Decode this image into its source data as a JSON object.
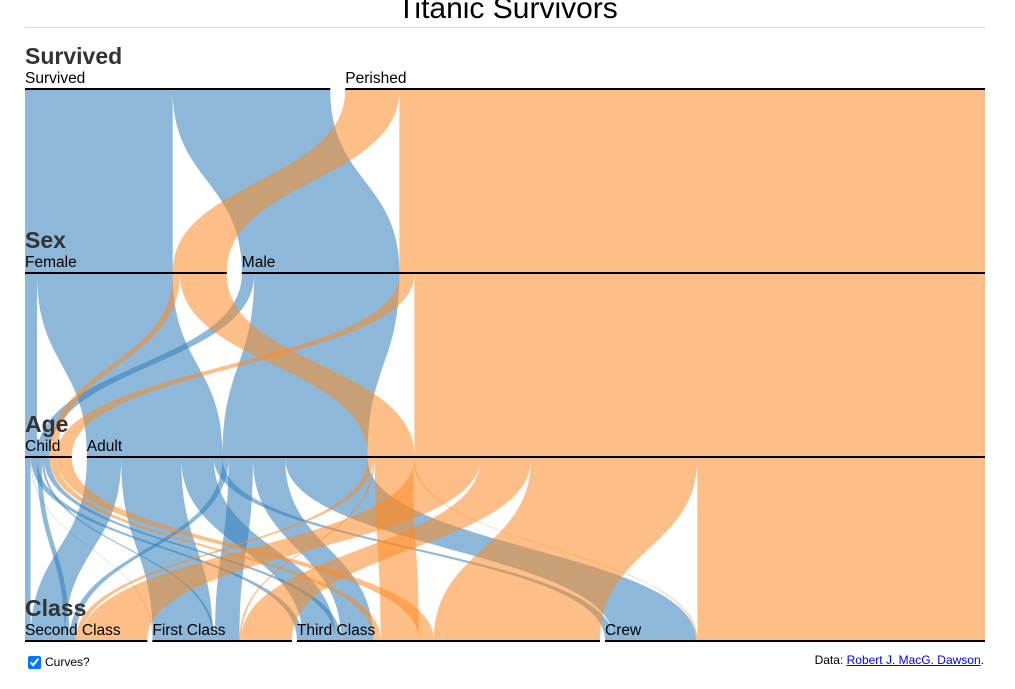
{
  "page": {
    "title": "Titanic Survivors",
    "curves_label": "Curves?",
    "curves_checked": true,
    "credit_prefix": "Data: ",
    "credit_link": "Robert J. MacG. Dawson",
    "credit_suffix": "."
  },
  "colors": {
    "survived": "#2f7ebc",
    "perished": "#fb8b24",
    "axis": "#000000"
  },
  "chart_data": {
    "type": "parallel-sets",
    "title": "Titanic Survivors",
    "dimensions": [
      {
        "name": "Survived",
        "categories": [
          "Survived",
          "Perished"
        ]
      },
      {
        "name": "Sex",
        "categories": [
          "Female",
          "Male"
        ]
      },
      {
        "name": "Age",
        "categories": [
          "Child",
          "Adult"
        ]
      },
      {
        "name": "Class",
        "categories": [
          "Second Class",
          "First Class",
          "Third Class",
          "Crew"
        ]
      }
    ],
    "color_by": "Survived",
    "records": [
      {
        "Survived": "Survived",
        "Sex": "Female",
        "Age": "Child",
        "Class": "Second Class",
        "count": 13
      },
      {
        "Survived": "Survived",
        "Sex": "Female",
        "Age": "Child",
        "Class": "First Class",
        "count": 1
      },
      {
        "Survived": "Survived",
        "Sex": "Female",
        "Age": "Child",
        "Class": "Third Class",
        "count": 14
      },
      {
        "Survived": "Survived",
        "Sex": "Female",
        "Age": "Adult",
        "Class": "Second Class",
        "count": 80
      },
      {
        "Survived": "Survived",
        "Sex": "Female",
        "Age": "Adult",
        "Class": "First Class",
        "count": 140
      },
      {
        "Survived": "Survived",
        "Sex": "Female",
        "Age": "Adult",
        "Class": "Third Class",
        "count": 76
      },
      {
        "Survived": "Survived",
        "Sex": "Female",
        "Age": "Adult",
        "Class": "Crew",
        "count": 20
      },
      {
        "Survived": "Survived",
        "Sex": "Male",
        "Age": "Child",
        "Class": "Second Class",
        "count": 11
      },
      {
        "Survived": "Survived",
        "Sex": "Male",
        "Age": "Child",
        "Class": "First Class",
        "count": 5
      },
      {
        "Survived": "Survived",
        "Sex": "Male",
        "Age": "Child",
        "Class": "Third Class",
        "count": 13
      },
      {
        "Survived": "Survived",
        "Sex": "Male",
        "Age": "Adult",
        "Class": "Second Class",
        "count": 14
      },
      {
        "Survived": "Survived",
        "Sex": "Male",
        "Age": "Adult",
        "Class": "First Class",
        "count": 57
      },
      {
        "Survived": "Survived",
        "Sex": "Male",
        "Age": "Adult",
        "Class": "Third Class",
        "count": 75
      },
      {
        "Survived": "Survived",
        "Sex": "Male",
        "Age": "Adult",
        "Class": "Crew",
        "count": 192
      },
      {
        "Survived": "Perished",
        "Sex": "Female",
        "Age": "Child",
        "Class": "Third Class",
        "count": 17
      },
      {
        "Survived": "Perished",
        "Sex": "Female",
        "Age": "Adult",
        "Class": "Second Class",
        "count": 13
      },
      {
        "Survived": "Perished",
        "Sex": "Female",
        "Age": "Adult",
        "Class": "First Class",
        "count": 4
      },
      {
        "Survived": "Perished",
        "Sex": "Female",
        "Age": "Adult",
        "Class": "Third Class",
        "count": 89
      },
      {
        "Survived": "Perished",
        "Sex": "Female",
        "Age": "Adult",
        "Class": "Crew",
        "count": 3
      },
      {
        "Survived": "Perished",
        "Sex": "Male",
        "Age": "Child",
        "Class": "Third Class",
        "count": 35
      },
      {
        "Survived": "Perished",
        "Sex": "Male",
        "Age": "Adult",
        "Class": "Second Class",
        "count": 154
      },
      {
        "Survived": "Perished",
        "Sex": "Male",
        "Age": "Adult",
        "Class": "First Class",
        "count": 118
      },
      {
        "Survived": "Perished",
        "Sex": "Male",
        "Age": "Adult",
        "Class": "Third Class",
        "count": 387
      },
      {
        "Survived": "Perished",
        "Sex": "Male",
        "Age": "Adult",
        "Class": "Crew",
        "count": 670
      }
    ]
  }
}
